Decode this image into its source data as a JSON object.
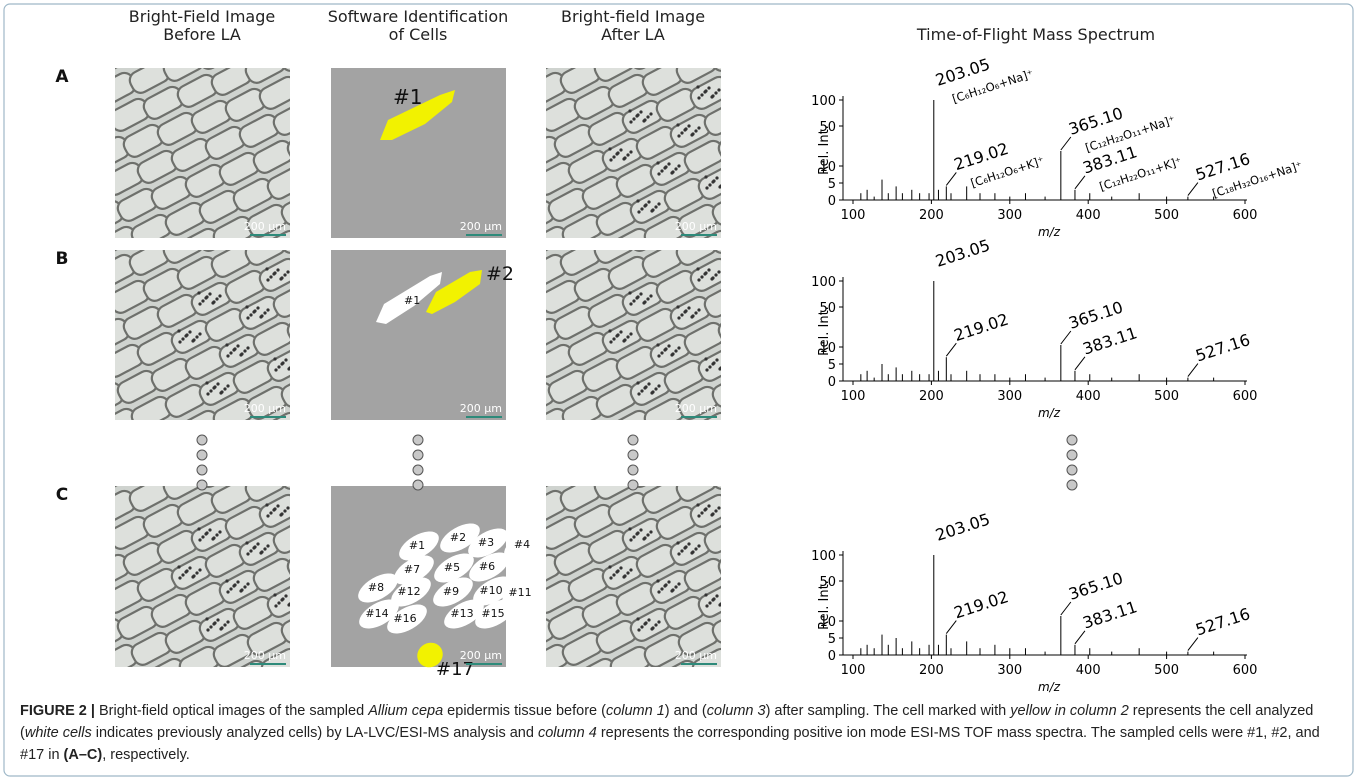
{
  "headers": [
    [
      "Bright-Field Image",
      "Before LA"
    ],
    [
      "Software Identification",
      "of Cells"
    ],
    [
      "Bright-field Image",
      "After LA"
    ],
    [
      "Time-of-Flight Mass Spectrum"
    ]
  ],
  "rows": [
    "A",
    "B",
    "C"
  ],
  "scale_bar": "200 μm",
  "cell_labels": [
    [
      "#1"
    ],
    [
      "#1",
      "#2"
    ],
    [
      "#1",
      "#2",
      "#3",
      "#4",
      "#5",
      "#6",
      "#7",
      "#8",
      "#9",
      "#10",
      "#11",
      "#12",
      "#13",
      "#14",
      "#15",
      "#16",
      "#17"
    ]
  ],
  "chart_data": [
    {
      "type": "bar",
      "xlabel": "m/z",
      "ylabel": "Rel. Int.",
      "color": "#000000",
      "xlim": [
        100,
        600
      ],
      "xticks": [
        100,
        200,
        300,
        400,
        500,
        600
      ],
      "ylim": [
        0,
        100
      ],
      "yticks": [
        0,
        5,
        10,
        50,
        100
      ],
      "x": [
        203.05,
        219.02,
        365.1,
        383.11,
        527.16,
        110,
        118,
        127,
        137,
        145,
        155,
        163,
        175,
        185,
        197,
        209,
        225,
        245,
        262,
        281,
        300,
        320,
        345,
        402,
        430,
        465,
        500,
        560
      ],
      "x_labels": [
        "203.05",
        "219.02",
        "365.10",
        "383.11",
        "527.16",
        null,
        null,
        null,
        null,
        null,
        null,
        null,
        null,
        null,
        null,
        null,
        null,
        null,
        null,
        null,
        null,
        null,
        null,
        null,
        null,
        null,
        null,
        null
      ],
      "formulas": [
        "[C₆H₁₂O₆+Na]⁺",
        "[C₆H₁₂O₆+K]⁺",
        "[C₁₂H₂₂O₁₁+Na]⁺",
        "[C₁₂H₂₂O₁₁+K]⁺",
        "[C₁₈H₃₂O₁₆+Na]⁺",
        null,
        null,
        null,
        null,
        null,
        null,
        null,
        null,
        null,
        null,
        null,
        null,
        null,
        null,
        null,
        null,
        null,
        null,
        null,
        null,
        null,
        null,
        null
      ],
      "values": [
        100,
        4,
        25,
        3,
        1,
        2,
        3,
        1,
        6,
        2,
        4,
        2,
        3,
        2,
        2,
        3,
        2,
        4,
        2,
        2,
        1,
        2,
        1,
        2,
        1,
        2,
        1,
        1
      ]
    },
    {
      "type": "bar",
      "xlabel": "m/z",
      "ylabel": "Rel. Int.",
      "color": "#000000",
      "xlim": [
        100,
        600
      ],
      "xticks": [
        100,
        200,
        300,
        400,
        500,
        600
      ],
      "ylim": [
        0,
        100
      ],
      "yticks": [
        0,
        5,
        10,
        50,
        100
      ],
      "x": [
        203.05,
        219.02,
        365.1,
        383.11,
        527.16,
        110,
        118,
        127,
        137,
        145,
        155,
        163,
        175,
        185,
        197,
        209,
        225,
        245,
        262,
        281,
        300,
        320,
        345,
        402,
        430,
        465,
        500,
        560
      ],
      "x_labels": [
        "203.05",
        "219.02",
        "365.10",
        "383.11",
        "527.16",
        null,
        null,
        null,
        null,
        null,
        null,
        null,
        null,
        null,
        null,
        null,
        null,
        null,
        null,
        null,
        null,
        null,
        null,
        null,
        null,
        null,
        null,
        null
      ],
      "values": [
        100,
        7,
        12,
        3,
        1,
        2,
        3,
        1,
        5,
        2,
        4,
        2,
        3,
        2,
        2,
        3,
        2,
        3,
        2,
        2,
        1,
        2,
        1,
        2,
        1,
        2,
        1,
        1
      ]
    },
    {
      "type": "bar",
      "xlabel": "m/z",
      "ylabel": "Rel. Int.",
      "color": "#000000",
      "xlim": [
        100,
        600
      ],
      "xticks": [
        100,
        200,
        300,
        400,
        500,
        600
      ],
      "ylim": [
        0,
        100
      ],
      "yticks": [
        0,
        5,
        10,
        50,
        100
      ],
      "x": [
        203.05,
        219.02,
        365.1,
        383.11,
        527.16,
        110,
        118,
        127,
        137,
        145,
        155,
        163,
        175,
        185,
        197,
        209,
        225,
        245,
        262,
        281,
        300,
        320,
        345,
        402,
        430,
        465,
        500,
        560
      ],
      "x_labels": [
        "203.05",
        "219.02",
        "365.10",
        "383.11",
        "527.16",
        null,
        null,
        null,
        null,
        null,
        null,
        null,
        null,
        null,
        null,
        null,
        null,
        null,
        null,
        null,
        null,
        null,
        null,
        null,
        null,
        null,
        null,
        null
      ],
      "values": [
        100,
        6,
        15,
        3,
        1,
        2,
        3,
        2,
        6,
        3,
        5,
        2,
        4,
        2,
        3,
        3,
        2,
        4,
        2,
        3,
        2,
        2,
        1,
        2,
        1,
        2,
        1,
        1
      ]
    }
  ],
  "caption": [
    {
      "text": "FIGURE 2 |",
      "style": "bold"
    },
    {
      "text": " Bright-field optical images of the sampled ",
      "style": "normal"
    },
    {
      "text": "Allium cepa",
      "style": "italic"
    },
    {
      "text": " epidermis tissue before (",
      "style": "normal"
    },
    {
      "text": "column 1",
      "style": "italic"
    },
    {
      "text": ") and (",
      "style": "normal"
    },
    {
      "text": "column 3",
      "style": "italic"
    },
    {
      "text": ") after sampling. The cell marked with ",
      "style": "normal"
    },
    {
      "text": "yellow in column 2",
      "style": "italic"
    },
    {
      "text": " represents the cell analyzed (",
      "style": "normal"
    },
    {
      "text": "white cells",
      "style": "italic"
    },
    {
      "text": " indicates previously analyzed cells) by LA-LVC/ESI-MS analysis and ",
      "style": "normal"
    },
    {
      "text": "column 4",
      "style": "italic"
    },
    {
      "text": " represents the corresponding positive ion mode ESI-MS TOF mass spectra. The sampled cells were #1, #2, and #17 in ",
      "style": "normal"
    },
    {
      "text": "(A–C)",
      "style": "bold"
    },
    {
      "text": ", respectively.",
      "style": "normal"
    }
  ]
}
